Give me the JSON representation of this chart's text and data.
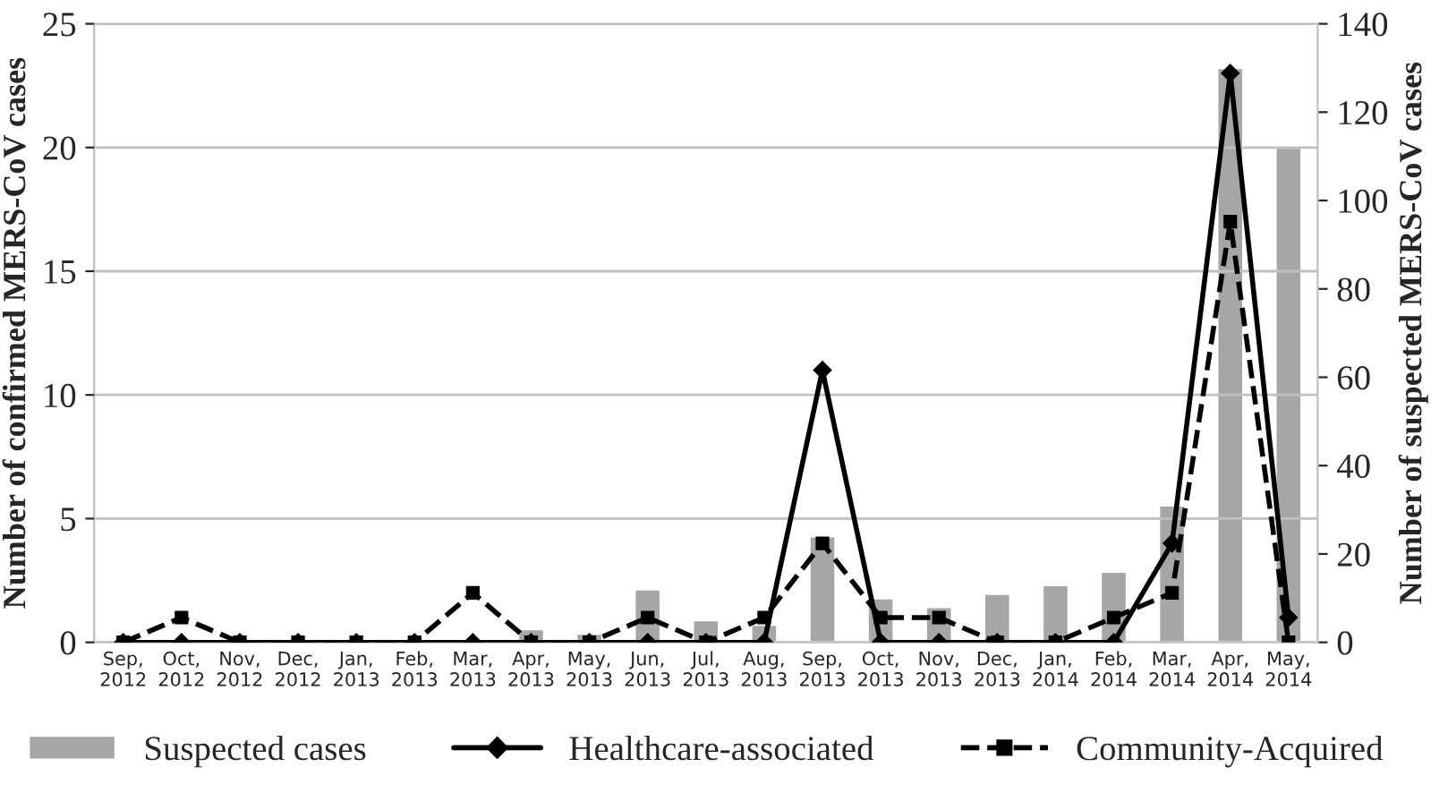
{
  "chart_data": {
    "type": "line",
    "categories": [
      "Sep,\n2012",
      "Oct,\n2012",
      "Nov,\n2012",
      "Dec,\n2012",
      "Jan,\n2013",
      "Feb,\n2013",
      "Mar,\n2013",
      "Apr,\n2013",
      "May,\n2013",
      "Jun,\n2013",
      "Jul,\n2013",
      "Aug,\n2013",
      "Sep,\n2013",
      "Oct,\n2013",
      "Nov,\n2013",
      "Dec,\n2013",
      "Jan,\n2014",
      "Feb,\n2014",
      "Mar,\n2014",
      "Apr,\n2014",
      "May,\n2014"
    ],
    "ylabel": "Number of confirmed MERS-CoV cases",
    "y2label": "Number of suspected MERS-CoV cases",
    "series": [
      {
        "name": "Suspected cases",
        "type": "bar",
        "axis": "y2",
        "color": "#a6a6a6",
        "values": [
          0,
          0,
          0,
          0,
          null,
          0,
          null,
          3,
          2,
          12,
          5,
          4,
          24,
          10,
          8,
          11,
          13,
          16,
          31,
          130,
          112
        ]
      },
      {
        "name": "Healthcare-associated",
        "type": "line",
        "color": "#000000",
        "marker": "diamond",
        "line_style": "solid",
        "values": [
          0,
          0,
          0,
          0,
          0,
          0,
          0,
          0,
          0,
          0,
          0,
          0,
          11,
          0,
          0,
          0,
          0,
          0,
          4,
          23,
          1
        ]
      },
      {
        "name": "Community-Acquired",
        "type": "line",
        "color": "#000000",
        "marker": "square",
        "line_style": "dashed",
        "values": [
          0,
          1,
          0,
          0,
          0,
          0,
          2,
          0,
          0,
          1,
          0,
          1,
          4,
          1,
          1,
          0,
          0,
          1,
          2,
          17,
          0
        ]
      }
    ],
    "ylim": [
      0,
      25
    ],
    "yticks": [
      0,
      5,
      10,
      15,
      20,
      25
    ],
    "y2lim": [
      0,
      140
    ],
    "y2ticks": [
      0,
      20,
      40,
      60,
      80,
      100,
      120,
      140
    ],
    "grid": "y",
    "legend": "bottom"
  }
}
